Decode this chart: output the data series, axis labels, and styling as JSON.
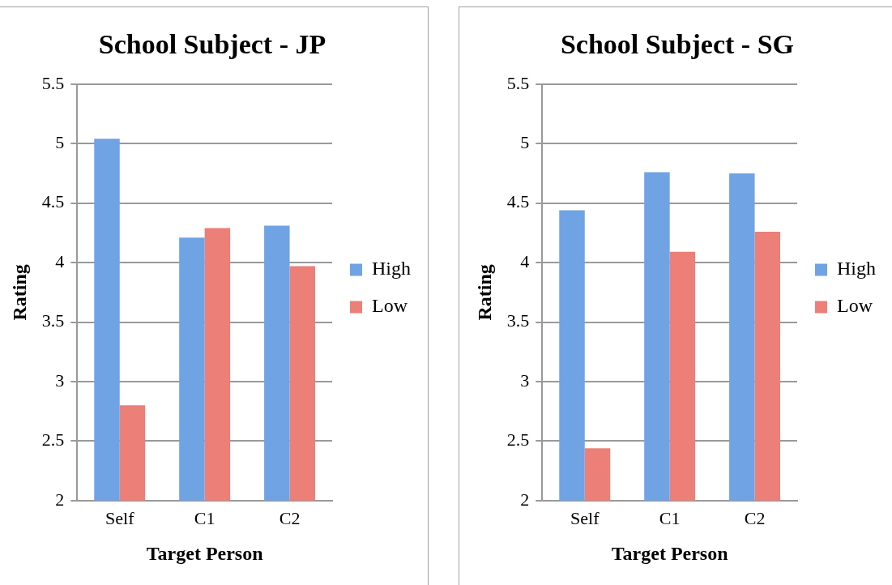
{
  "chart_data": [
    {
      "type": "bar",
      "title": "School Subject - JP",
      "xlabel": "Target Person",
      "ylabel": "Rating",
      "categories": [
        "Self",
        "C1",
        "C2"
      ],
      "series": [
        {
          "name": "High",
          "color": "#6fa3e4",
          "values": [
            5.04,
            4.21,
            4.31
          ]
        },
        {
          "name": "Low",
          "color": "#ec7f78",
          "values": [
            2.8,
            4.29,
            3.97
          ]
        }
      ],
      "ylim": [
        2,
        5.5
      ],
      "yticks": [
        2,
        2.5,
        3,
        3.5,
        4,
        4.5,
        5,
        5.5
      ],
      "grid": "y",
      "legend": "right"
    },
    {
      "type": "bar",
      "title": "School Subject - SG",
      "xlabel": "Target Person",
      "ylabel": "Rating",
      "categories": [
        "Self",
        "C1",
        "C2"
      ],
      "series": [
        {
          "name": "High",
          "color": "#6fa3e4",
          "values": [
            4.44,
            4.76,
            4.75
          ]
        },
        {
          "name": "Low",
          "color": "#ec7f78",
          "values": [
            2.44,
            4.09,
            4.26
          ]
        }
      ],
      "ylim": [
        2,
        5.5
      ],
      "yticks": [
        2,
        2.5,
        3,
        3.5,
        4,
        4.5,
        5,
        5.5
      ],
      "grid": "y",
      "legend": "right"
    }
  ]
}
